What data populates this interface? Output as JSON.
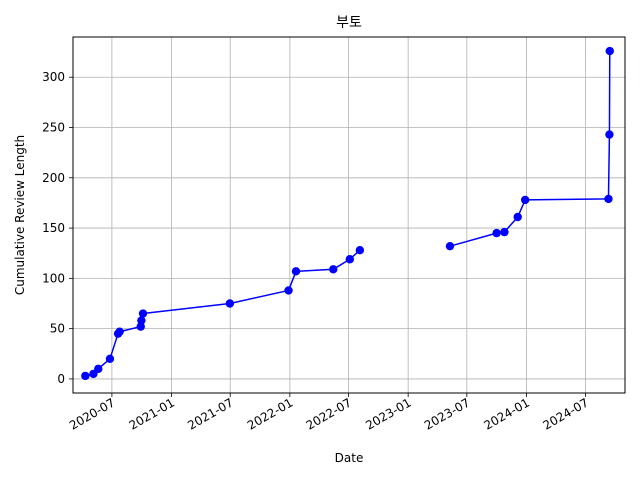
{
  "chart_data": {
    "type": "line",
    "title": "부토",
    "xlabel": "Date",
    "ylabel": "Cumulative Review Length",
    "grid": true,
    "line_color": "#0000ff",
    "marker_color": "#0000ff",
    "xlim": [
      "2020-03-03",
      "2024-10-31"
    ],
    "ylim": [
      -14,
      340
    ],
    "x_ticks": [
      "2020-07",
      "2021-01",
      "2021-07",
      "2022-01",
      "2022-07",
      "2023-01",
      "2023-07",
      "2024-01",
      "2024-07"
    ],
    "y_ticks": [
      0,
      50,
      100,
      150,
      200,
      250,
      300
    ],
    "segments": [
      [
        {
          "x": "2020-04-10",
          "y": 3
        },
        {
          "x": "2020-05-05",
          "y": 5
        },
        {
          "x": "2020-05-20",
          "y": 10
        },
        {
          "x": "2020-06-25",
          "y": 20
        },
        {
          "x": "2020-07-20",
          "y": 45
        },
        {
          "x": "2020-07-25",
          "y": 47
        },
        {
          "x": "2020-09-28",
          "y": 52
        },
        {
          "x": "2020-09-30",
          "y": 58
        },
        {
          "x": "2020-10-05",
          "y": 65
        },
        {
          "x": "2021-06-30",
          "y": 75
        },
        {
          "x": "2021-12-28",
          "y": 88
        },
        {
          "x": "2022-01-20",
          "y": 107
        },
        {
          "x": "2022-05-15",
          "y": 109
        },
        {
          "x": "2022-07-05",
          "y": 119
        },
        {
          "x": "2022-08-05",
          "y": 128
        }
      ],
      [
        {
          "x": "2023-05-10",
          "y": 132
        },
        {
          "x": "2023-10-01",
          "y": 145
        },
        {
          "x": "2023-10-25",
          "y": 146
        },
        {
          "x": "2023-12-05",
          "y": 161
        },
        {
          "x": "2023-12-28",
          "y": 178
        },
        {
          "x": "2024-09-10",
          "y": 179
        },
        {
          "x": "2024-09-13",
          "y": 243
        },
        {
          "x": "2024-09-14",
          "y": 326
        }
      ]
    ]
  }
}
